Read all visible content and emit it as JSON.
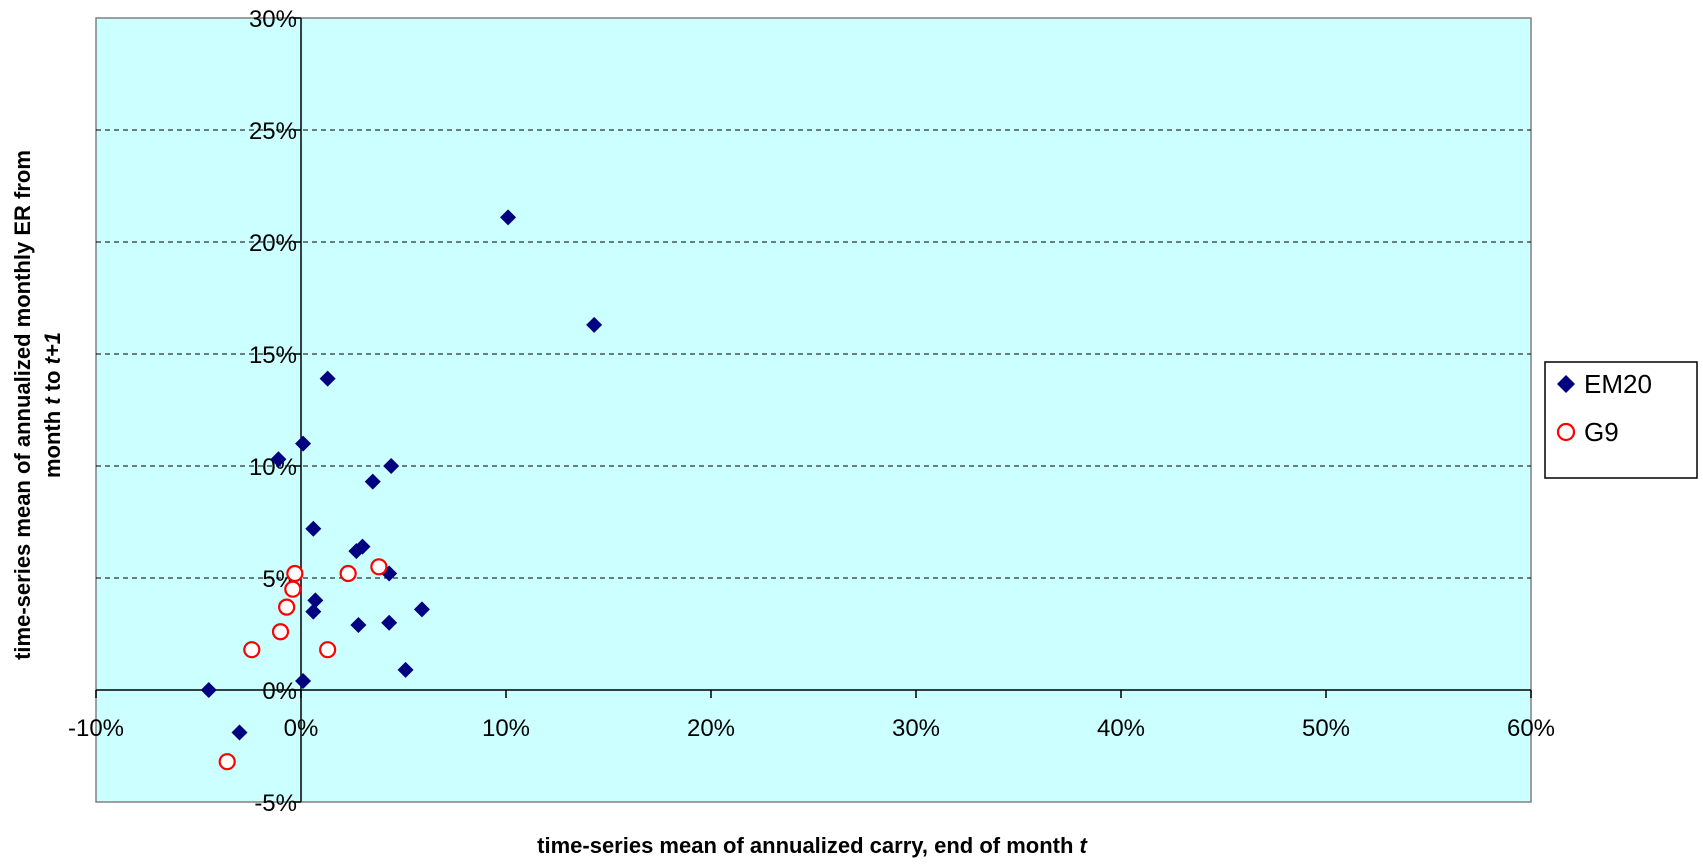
{
  "chart_data": {
    "type": "scatter",
    "xlabel": "time-series mean of annualized carry, end of month t",
    "ylabel_line1": "time-series mean of annualized monthly ER from",
    "ylabel_line2": "month t to t+1",
    "xlim": [
      -0.1,
      0.6
    ],
    "ylim": [
      -0.05,
      0.3
    ],
    "x_ticks": [
      -0.1,
      0.0,
      0.1,
      0.2,
      0.3,
      0.4,
      0.5,
      0.6
    ],
    "x_tick_labels": [
      "-10%",
      "0%",
      "10%",
      "20%",
      "30%",
      "40%",
      "50%",
      "60%"
    ],
    "y_ticks": [
      -0.05,
      0.0,
      0.05,
      0.1,
      0.15,
      0.2,
      0.25,
      0.3
    ],
    "y_tick_labels": [
      "-5%",
      "0%",
      "5%",
      "10%",
      "15%",
      "20%",
      "25%",
      "30%"
    ],
    "grid": "horizontal dashed",
    "legend_position": "right",
    "plot_background": "#ccffff",
    "series": [
      {
        "name": "EM20",
        "marker": "diamond",
        "color": "#000080",
        "points": [
          [
            0.101,
            0.211
          ],
          [
            0.143,
            0.163
          ],
          [
            0.013,
            0.139
          ],
          [
            0.001,
            0.11
          ],
          [
            -0.011,
            0.103
          ],
          [
            0.044,
            0.1
          ],
          [
            0.035,
            0.093
          ],
          [
            0.006,
            0.072
          ],
          [
            0.03,
            0.064
          ],
          [
            0.027,
            0.062
          ],
          [
            0.043,
            0.052
          ],
          [
            0.007,
            0.04
          ],
          [
            0.006,
            0.035
          ],
          [
            0.059,
            0.036
          ],
          [
            0.028,
            0.029
          ],
          [
            0.043,
            0.03
          ],
          [
            0.051,
            0.009
          ],
          [
            0.001,
            0.004
          ],
          [
            -0.045,
            0.0
          ],
          [
            -0.03,
            -0.019
          ]
        ]
      },
      {
        "name": "G9",
        "marker": "circle",
        "color": "#ff0000",
        "points": [
          [
            -0.003,
            0.052
          ],
          [
            0.023,
            0.052
          ],
          [
            0.038,
            0.055
          ],
          [
            -0.004,
            0.045
          ],
          [
            -0.007,
            0.037
          ],
          [
            -0.01,
            0.026
          ],
          [
            -0.024,
            0.018
          ],
          [
            0.013,
            0.018
          ],
          [
            -0.036,
            -0.032
          ]
        ]
      }
    ]
  }
}
